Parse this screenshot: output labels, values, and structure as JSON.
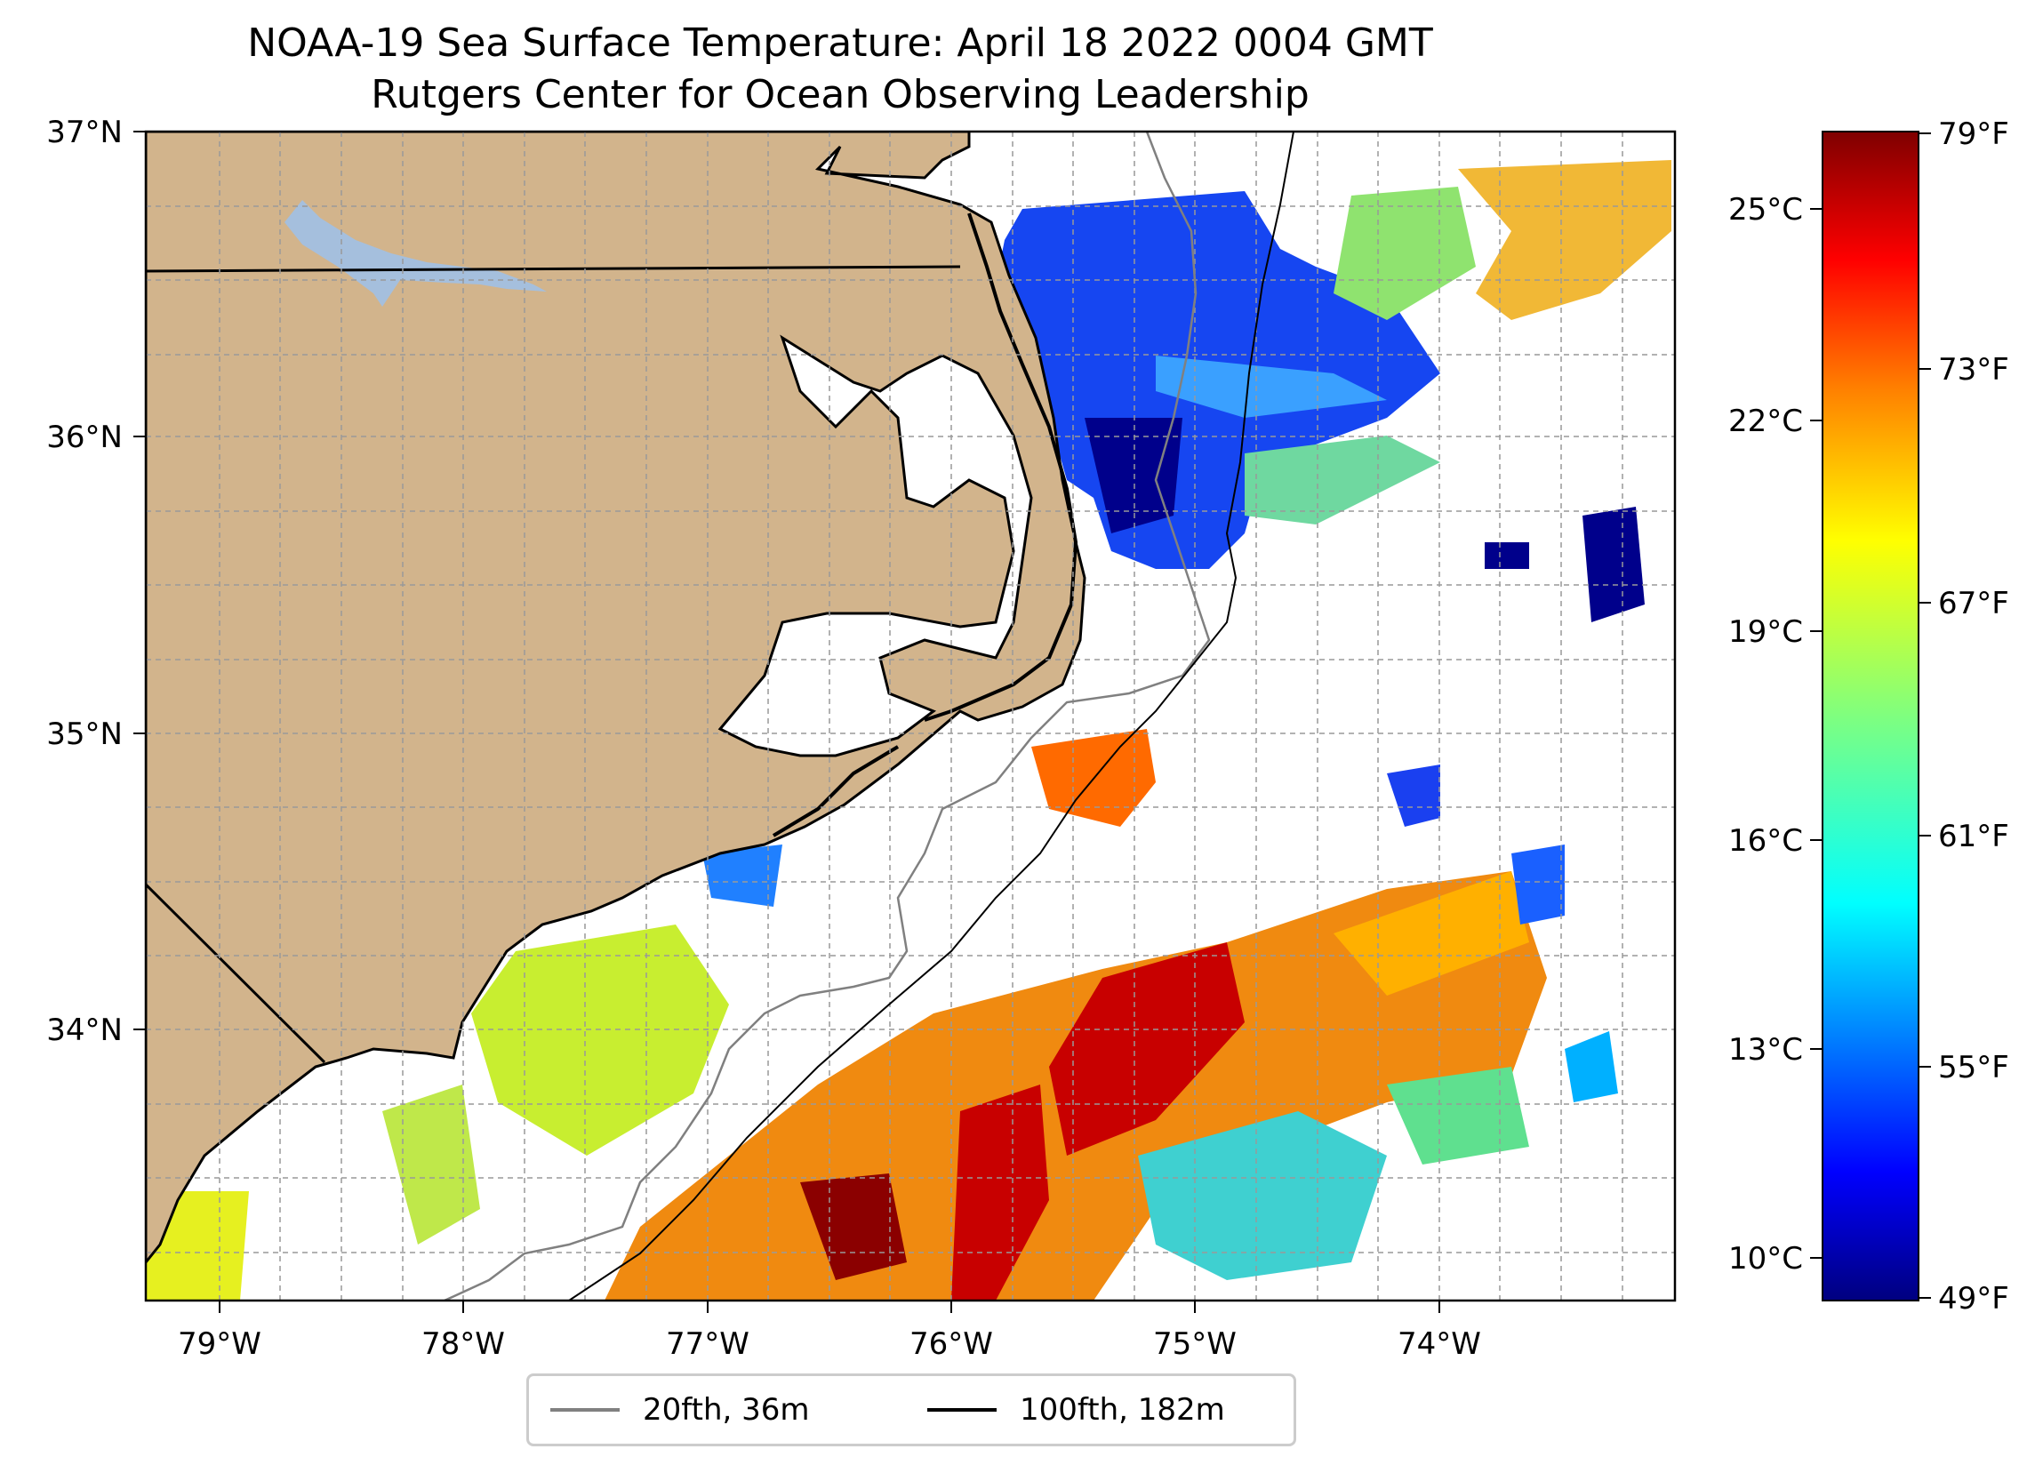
{
  "title_line1": "NOAA-19 Sea Surface Temperature: April 18 2022 0004 GMT",
  "title_line2": "Rutgers Center for Ocean Observing Leadership",
  "lat_labels": [
    "37°N",
    "36°N",
    "35°N",
    "34°N"
  ],
  "lon_labels": [
    "79°W",
    "78°W",
    "77°W",
    "76°W",
    "75°W",
    "74°W"
  ],
  "colorbar_celsius": [
    "25°C",
    "22°C",
    "19°C",
    "16°C",
    "13°C",
    "10°C"
  ],
  "colorbar_fahrenheit": [
    "79°F",
    "73°F",
    "67°F",
    "61°F",
    "55°F",
    "49°F"
  ],
  "legend": [
    {
      "label": "20fth, 36m",
      "color": "#808080"
    },
    {
      "label": "100fth, 182m",
      "color": "#000000"
    }
  ],
  "colors": {
    "land": "#d2b48c",
    "lake": "#a5bfdd",
    "sst_scale": [
      "#00007f",
      "#0000ff",
      "#007fff",
      "#00ffff",
      "#7fff7f",
      "#ffff00",
      "#ff7f00",
      "#ff0000",
      "#7f0000"
    ]
  }
}
